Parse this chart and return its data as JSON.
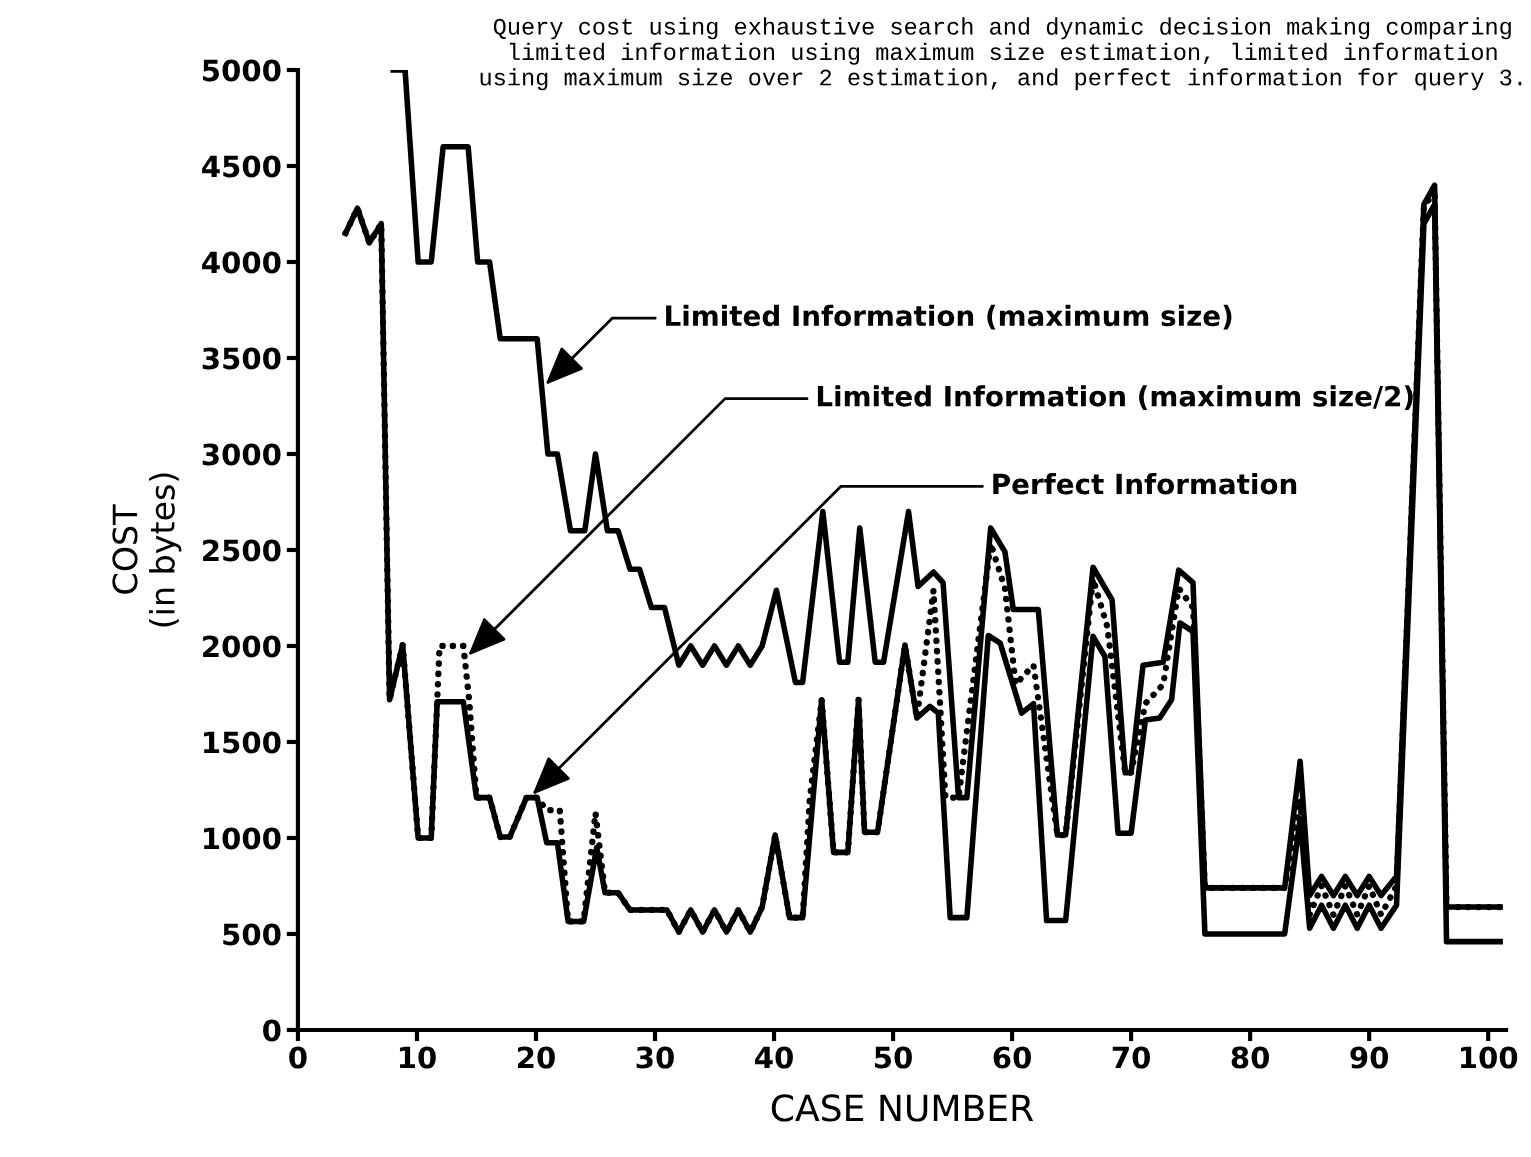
{
  "chart_data": {
    "type": "line",
    "title": "Query cost using exhaustive search and dynamic decision making comparing limited information using maximum size estimation, limited information using maximum size over 2 estimation, and perfect information for query 3.",
    "xlabel": "CASE NUMBER",
    "ylabel": "COST\n(in bytes)",
    "xlim": [
      0,
      101.5
    ],
    "xticks": [
      0,
      10,
      20,
      30,
      40,
      50,
      60,
      70,
      80,
      90,
      100
    ],
    "ylim": [
      0,
      5000
    ],
    "yticks": [
      0,
      500,
      1000,
      1500,
      2000,
      2500,
      3000,
      3500,
      4000,
      4500,
      5000
    ],
    "grid": false,
    "legend": false,
    "marker": "none",
    "series": [
      {
        "color": "#000000",
        "line_style": "solid",
        "x": [
          8,
          9,
          10.1,
          11.2,
          12.2,
          14.3,
          15.1,
          16.1,
          17,
          20.1,
          21,
          21.8,
          22.9,
          24.1,
          25,
          26,
          26.9,
          27.9,
          28.7,
          29.7,
          30.8,
          32,
          33,
          34,
          35,
          36,
          37,
          38,
          39,
          40.2,
          41.8,
          42.4,
          44.1,
          45.5,
          46.2,
          47.2,
          48.5,
          49.2,
          51.3,
          52.1,
          53.4,
          54.2,
          55.5,
          56.2,
          58.2,
          59.4,
          60.1,
          62.2,
          63.8,
          64.5,
          66.8,
          68.4,
          69.5,
          70,
          71,
          72.7,
          74,
          75.2,
          76.2,
          82.9,
          84.2,
          85,
          86,
          87,
          88,
          89,
          90,
          91,
          92.3,
          94.6,
          95.5,
          96.5,
          101
        ],
        "values": [
          5000,
          5000,
          4000,
          4000,
          4600,
          4600,
          4000,
          4000,
          3600,
          3600,
          3000,
          3000,
          2600,
          2600,
          3000,
          2600,
          2600,
          2400,
          2400,
          2200,
          2200,
          1900,
          2000,
          1900,
          2000,
          1900,
          2000,
          1900,
          2000,
          2290,
          1810,
          1810,
          2700,
          1915,
          1915,
          2615,
          1915,
          1915,
          2700,
          2310,
          2385,
          2330,
          1210,
          1210,
          2615,
          2490,
          2190,
          2190,
          1015,
          1015,
          2410,
          2240,
          1340,
          1340,
          1900,
          1915,
          2395,
          2330,
          740,
          740,
          1400,
          700,
          800,
          700,
          800,
          700,
          800,
          700,
          800,
          4300,
          4400,
          640,
          640
        ]
      },
      {
        "color": "#000000",
        "line_style": "dotted",
        "x": [
          4,
          5,
          6,
          7,
          7.7,
          8.8,
          10.1,
          11.2,
          11.9,
          12.2,
          13.9,
          14.4,
          15,
          16.1,
          17,
          17.8,
          19.2,
          20.1,
          20.9,
          22,
          22.7,
          24,
          25,
          25.8,
          26.9,
          27.9,
          31,
          32,
          33,
          34,
          35,
          36,
          37,
          38,
          39,
          40.1,
          41.3,
          42.4,
          43,
          44,
          45,
          46.2,
          47.1,
          47.6,
          48.7,
          51,
          52,
          53.4,
          54.4,
          55.5,
          58.2,
          59.4,
          60.3,
          61.8,
          63.8,
          64.5,
          66.8,
          68,
          69.5,
          70,
          71.2,
          72.7,
          74,
          75.2,
          76.2,
          82.9,
          84.2,
          85,
          86,
          87,
          88,
          89,
          90,
          91,
          92.3,
          94.6,
          95.5,
          96.5,
          101
        ],
        "values": [
          4150,
          4280,
          4100,
          4200,
          1720,
          2005,
          1000,
          1000,
          2000,
          2000,
          2000,
          1710,
          1210,
          1210,
          1005,
          1005,
          1210,
          1210,
          1145,
          1145,
          565,
          565,
          1130,
          715,
          715,
          625,
          625,
          510,
          625,
          510,
          625,
          510,
          625,
          510,
          640,
          1015,
          585,
          585,
          1200,
          1720,
          925,
          925,
          1720,
          1030,
          1030,
          2005,
          1625,
          2290,
          1210,
          1210,
          2535,
          2300,
          1800,
          1900,
          1015,
          1015,
          2350,
          2100,
          1340,
          1340,
          1700,
          1800,
          2300,
          2200,
          740,
          740,
          1200,
          600,
          750,
          600,
          750,
          600,
          750,
          600,
          750,
          4300,
          4350,
          640,
          640
        ]
      },
      {
        "color": "#000000",
        "line_style": "solid",
        "x": [
          4,
          5,
          6,
          7,
          7.7,
          8.8,
          10.1,
          11.2,
          11.7,
          13.9,
          15,
          16.1,
          17,
          17.8,
          19.2,
          20.1,
          20.9,
          21.8,
          22.7,
          24,
          25.1,
          25.8,
          26.9,
          27.9,
          31,
          32,
          33,
          34,
          35,
          36,
          37,
          38,
          39,
          40.1,
          41.3,
          42.4,
          44,
          45,
          46.2,
          47.1,
          47.6,
          48.7,
          51,
          52,
          53.1,
          53.8,
          54.8,
          56.2,
          58,
          59,
          60.8,
          61.8,
          62.9,
          64.5,
          66.8,
          67.8,
          68.9,
          70,
          71.2,
          72.4,
          73.4,
          74.1,
          75.2,
          76.2,
          82.9,
          84.2,
          85,
          86,
          87,
          88,
          89,
          90,
          91,
          92.3,
          94.6,
          95.5,
          96.5,
          101
        ],
        "values": [
          4150,
          4280,
          4100,
          4200,
          1720,
          2005,
          1000,
          1000,
          1710,
          1710,
          1210,
          1210,
          1005,
          1005,
          1210,
          1210,
          975,
          975,
          565,
          565,
          950,
          715,
          715,
          625,
          625,
          510,
          625,
          510,
          625,
          510,
          625,
          510,
          640,
          1015,
          585,
          585,
          1720,
          925,
          925,
          1720,
          1030,
          1030,
          2005,
          1625,
          1685,
          1650,
          585,
          585,
          2055,
          2015,
          1650,
          1700,
          570,
          570,
          2050,
          1945,
          1025,
          1025,
          1615,
          1625,
          1720,
          2120,
          2075,
          500,
          500,
          1100,
          530,
          650,
          530,
          650,
          530,
          650,
          530,
          650,
          4200,
          4300,
          460,
          460
        ]
      }
    ],
    "annotations": [
      {
        "text": "Limited Information (maximum size)",
        "x": 20.8,
        "y": 3360
      },
      {
        "text": "Limited Information (maximum size/2)",
        "x": 14.3,
        "y": 1950
      },
      {
        "text": "Perfect Information",
        "x": 19.7,
        "y": 1225
      }
    ]
  }
}
